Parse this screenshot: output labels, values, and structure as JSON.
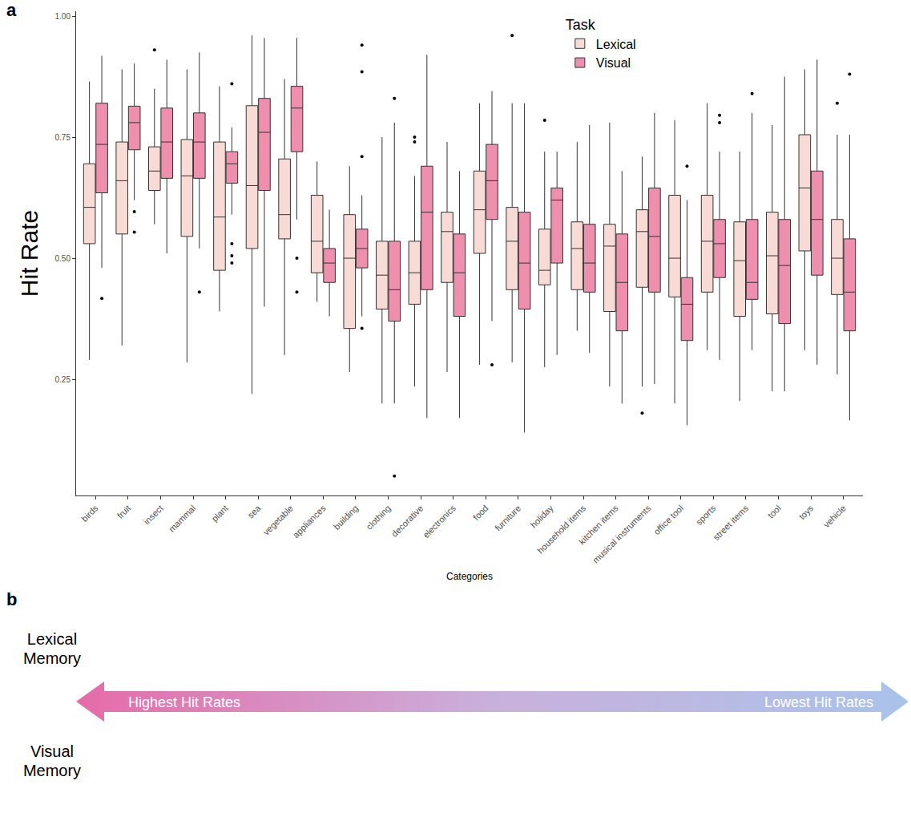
{
  "chart_data": {
    "type": "box",
    "panel_label": "a",
    "x_label": "Categories",
    "y_label": "Hit Rate",
    "legend": "top right",
    "legend_title": "Task",
    "grid": false,
    "categories": [
      "birds",
      "fruit",
      "insect",
      "mammal",
      "plant",
      "sea",
      "vegetable",
      "appliances",
      "building",
      "clothing",
      "decorative",
      "electronics",
      "food",
      "furniture",
      "holiday",
      "household items",
      "kitchen items",
      "musical instruments",
      "office tool",
      "sports",
      "street items",
      "tool",
      "toys",
      "vehicle"
    ],
    "ylim": [
      0.01,
      1.01
    ],
    "yticks": [
      {
        "value": 0.25,
        "label": "0.25"
      },
      {
        "value": 0.5,
        "label": "0.50"
      },
      {
        "value": 0.75,
        "label": "0.75"
      },
      {
        "value": 1.0,
        "label": "1.00"
      }
    ],
    "series": [
      {
        "name": "Lexical",
        "color": "#f9dbd6",
        "lowerfence": [
          0.29,
          0.32,
          0.57,
          0.285,
          0.39,
          0.22,
          0.3,
          0.41,
          0.265,
          0.2,
          0.235,
          0.265,
          0.28,
          0.285,
          0.275,
          0.35,
          0.235,
          0.235,
          0.2,
          0.31,
          0.205,
          0.225,
          0.31,
          0.26
        ],
        "q1": [
          0.53,
          0.55,
          0.64,
          0.545,
          0.475,
          0.52,
          0.54,
          0.47,
          0.355,
          0.395,
          0.405,
          0.45,
          0.51,
          0.435,
          0.445,
          0.435,
          0.39,
          0.44,
          0.42,
          0.43,
          0.38,
          0.385,
          0.515,
          0.425
        ],
        "median": [
          0.605,
          0.66,
          0.68,
          0.67,
          0.585,
          0.65,
          0.59,
          0.535,
          0.5,
          0.465,
          0.47,
          0.555,
          0.6,
          0.535,
          0.475,
          0.52,
          0.525,
          0.555,
          0.5,
          0.535,
          0.495,
          0.505,
          0.645,
          0.5
        ],
        "q3": [
          0.695,
          0.74,
          0.73,
          0.745,
          0.74,
          0.815,
          0.705,
          0.63,
          0.59,
          0.535,
          0.535,
          0.595,
          0.68,
          0.605,
          0.56,
          0.575,
          0.57,
          0.6,
          0.63,
          0.63,
          0.575,
          0.595,
          0.755,
          0.58
        ],
        "upperfence": [
          0.865,
          0.89,
          0.85,
          0.89,
          0.855,
          0.96,
          0.87,
          0.7,
          0.69,
          0.75,
          0.67,
          0.74,
          0.82,
          0.82,
          0.72,
          0.74,
          0.78,
          0.71,
          0.785,
          0.82,
          0.72,
          0.775,
          0.89,
          0.755
        ],
        "outliers": [
          [],
          [],
          [
            0.93
          ],
          [],
          [],
          [],
          [],
          [],
          [],
          [],
          [
            0.75,
            0.74
          ],
          [],
          [],
          [
            0.96
          ],
          [
            0.785
          ],
          [],
          [],
          [
            0.18
          ],
          [],
          [],
          [],
          [],
          [],
          [
            0.82
          ]
        ]
      },
      {
        "name": "Visual",
        "color": "#ee8fae",
        "lowerfence": [
          0.48,
          0.62,
          0.51,
          0.52,
          0.59,
          0.4,
          0.58,
          0.38,
          0.38,
          0.2,
          0.17,
          0.17,
          0.37,
          0.14,
          0.3,
          0.305,
          0.2,
          0.24,
          0.155,
          0.29,
          0.31,
          0.225,
          0.28,
          0.165
        ],
        "q1": [
          0.635,
          0.724,
          0.665,
          0.665,
          0.655,
          0.64,
          0.72,
          0.45,
          0.48,
          0.37,
          0.435,
          0.38,
          0.58,
          0.395,
          0.49,
          0.43,
          0.35,
          0.43,
          0.33,
          0.46,
          0.415,
          0.365,
          0.465,
          0.35
        ],
        "median": [
          0.735,
          0.78,
          0.74,
          0.74,
          0.695,
          0.76,
          0.81,
          0.49,
          0.52,
          0.435,
          0.595,
          0.47,
          0.66,
          0.49,
          0.62,
          0.49,
          0.45,
          0.545,
          0.405,
          0.53,
          0.45,
          0.485,
          0.58,
          0.43
        ],
        "q3": [
          0.82,
          0.814,
          0.81,
          0.8,
          0.72,
          0.83,
          0.855,
          0.52,
          0.56,
          0.535,
          0.69,
          0.55,
          0.735,
          0.595,
          0.645,
          0.57,
          0.55,
          0.645,
          0.46,
          0.58,
          0.58,
          0.58,
          0.68,
          0.54
        ],
        "upperfence": [
          0.918,
          0.902,
          0.91,
          0.925,
          0.77,
          0.955,
          0.955,
          0.6,
          0.63,
          0.78,
          0.92,
          0.68,
          0.845,
          0.82,
          0.72,
          0.775,
          0.68,
          0.8,
          0.62,
          0.72,
          0.8,
          0.875,
          0.91,
          0.755
        ],
        "outliers": [
          [
            0.417
          ],
          [
            0.596,
            0.554
          ],
          [],
          [
            0.43
          ],
          [
            0.86,
            0.53,
            0.505,
            0.49
          ],
          [],
          [
            0.5,
            0.43
          ],
          [],
          [
            0.94,
            0.885,
            0.71,
            0.355
          ],
          [
            0.83,
            0.05
          ],
          [],
          [],
          [
            0.28
          ],
          [],
          [],
          [],
          [],
          [],
          [
            0.69
          ],
          [
            0.795,
            0.78
          ],
          [
            0.84
          ],
          [],
          [],
          [
            0.88
          ]
        ]
      }
    ]
  },
  "panel_b": {
    "panel_label": "b",
    "rows": [
      "Lexical Memory",
      "Visual Memory"
    ],
    "arrow": {
      "left": "Highest Hit Rates",
      "right": "Lowest Hit Rates"
    }
  }
}
